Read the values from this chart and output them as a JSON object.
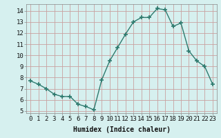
{
  "x": [
    0,
    1,
    2,
    3,
    4,
    5,
    6,
    7,
    8,
    9,
    10,
    11,
    12,
    13,
    14,
    15,
    16,
    17,
    18,
    19,
    20,
    21,
    22,
    23
  ],
  "y": [
    7.7,
    7.4,
    7.0,
    6.5,
    6.3,
    6.3,
    5.6,
    5.4,
    5.1,
    7.8,
    9.5,
    10.7,
    11.9,
    13.0,
    13.4,
    13.4,
    14.2,
    14.1,
    12.6,
    12.9,
    10.4,
    9.5,
    9.0,
    7.4
  ],
  "line_color": "#2d7a6e",
  "marker": "+",
  "markersize": 4,
  "markeredgewidth": 1.2,
  "linewidth": 1.0,
  "bg_color": "#d6f0ef",
  "grid_color": "#c8a0a0",
  "xlabel": "Humidex (Indice chaleur)",
  "xlabel_fontsize": 7,
  "xtick_labels": [
    "0",
    "1",
    "2",
    "3",
    "4",
    "5",
    "6",
    "7",
    "8",
    "9",
    "10",
    "11",
    "12",
    "13",
    "14",
    "15",
    "16",
    "17",
    "18",
    "19",
    "20",
    "21",
    "22",
    "23"
  ],
  "ytick_labels": [
    "5",
    "6",
    "7",
    "8",
    "9",
    "10",
    "11",
    "12",
    "13",
    "14"
  ],
  "yticks": [
    5,
    6,
    7,
    8,
    9,
    10,
    11,
    12,
    13,
    14
  ],
  "ylim": [
    4.8,
    14.6
  ],
  "xlim": [
    -0.5,
    23.5
  ],
  "tick_fontsize": 6.5,
  "spine_color": "#888888"
}
